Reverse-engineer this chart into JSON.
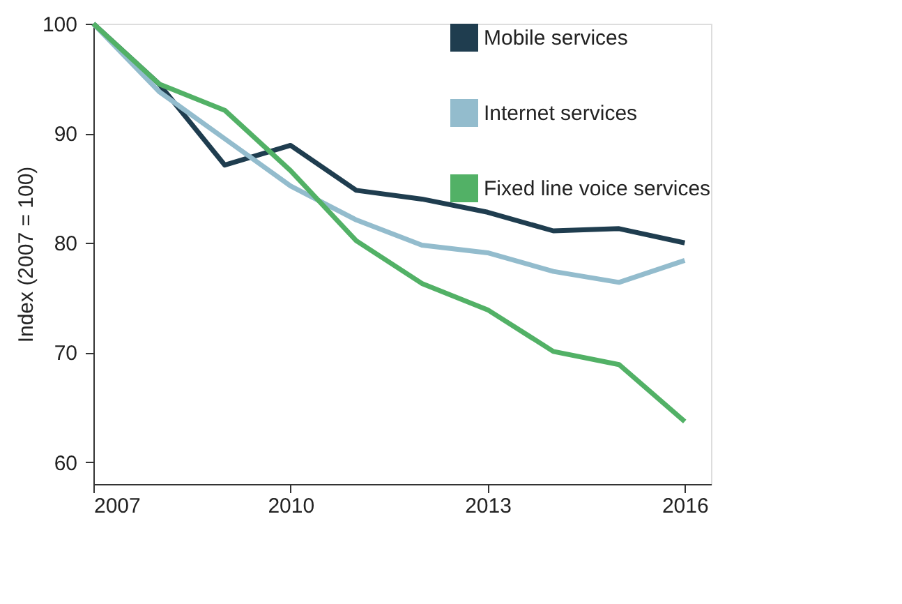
{
  "chart_data": {
    "type": "line",
    "ylabel": "Index (2007 = 100)",
    "x": [
      2007,
      2008,
      2009,
      2010,
      2011,
      2012,
      2013,
      2014,
      2015,
      2016
    ],
    "series": [
      {
        "name": "Mobile services",
        "color": "#1f3d4f",
        "values": [
          100,
          94.5,
          87.1,
          88.9,
          84.8,
          84.0,
          82.8,
          81.1,
          81.3,
          80.0
        ]
      },
      {
        "name": "Internet services",
        "color": "#93bccd",
        "values": [
          100,
          93.8,
          89.5,
          85.2,
          82.1,
          79.8,
          79.1,
          77.4,
          76.4,
          78.4
        ]
      },
      {
        "name": "Fixed line voice services",
        "color": "#52b166",
        "values": [
          100,
          94.5,
          92.1,
          86.6,
          80.2,
          76.3,
          73.9,
          70.1,
          68.9,
          63.7
        ]
      }
    ],
    "xlim": [
      2007,
      2016.4
    ],
    "xticks": [
      2007,
      2010,
      2013,
      2016
    ],
    "ylim": [
      58,
      100
    ],
    "yticks": [
      60,
      70,
      80,
      90,
      100
    ],
    "grid": false,
    "legend": "top right",
    "marker": "none",
    "line_style": "solid"
  }
}
